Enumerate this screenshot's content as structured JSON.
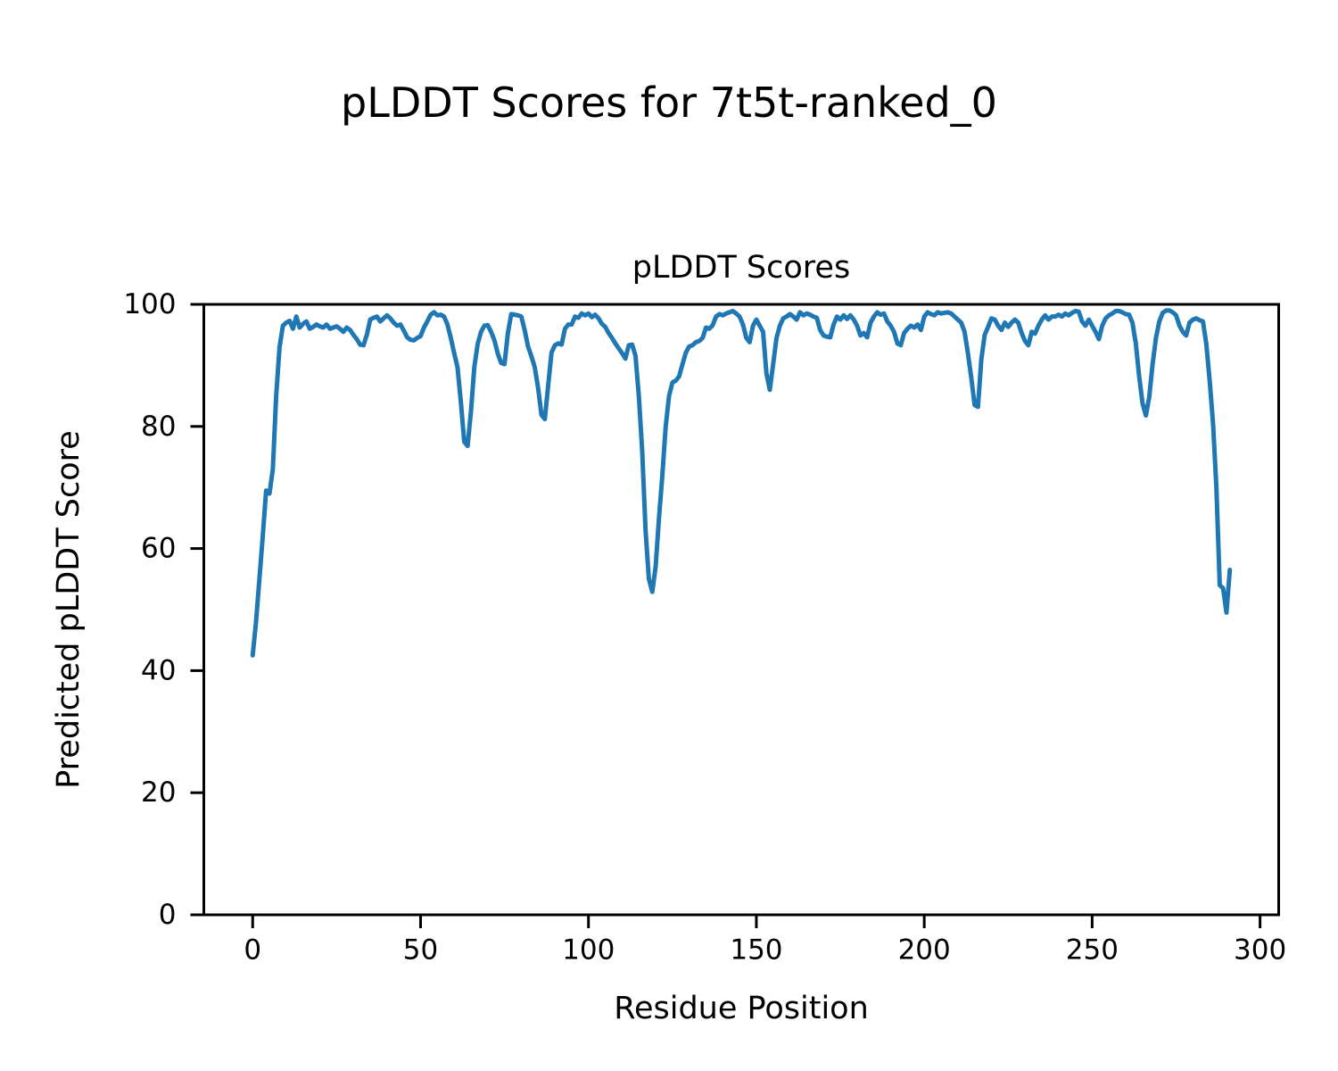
{
  "chart_data": {
    "type": "line",
    "suptitle": "pLDDT Scores for 7t5t-ranked_0",
    "title": "pLDDT Scores",
    "xlabel": "Residue Position",
    "ylabel": "Predicted pLDDT Score",
    "xlim": [
      -14.55,
      305.55
    ],
    "ylim": [
      0,
      100
    ],
    "xticks": [
      0,
      50,
      100,
      150,
      200,
      250,
      300
    ],
    "yticks": [
      0,
      20,
      40,
      60,
      80,
      100
    ],
    "grid": false,
    "legend_position": "none",
    "line_color": "#1f77b4",
    "x_start": 0,
    "x_step": 1,
    "series": [
      {
        "name": "pLDDT",
        "values": [
          42.5,
          48,
          55,
          62,
          69.5,
          69,
          73,
          85,
          93,
          96.5,
          97,
          97.3,
          96,
          98,
          96.2,
          96.8,
          97.2,
          96,
          96.3,
          96.7,
          96.4,
          96.2,
          96.7,
          96,
          96.2,
          96.4,
          96,
          95.5,
          96.2,
          95.8,
          95,
          94.3,
          93.4,
          93.3,
          95,
          97.5,
          97.8,
          98,
          97.2,
          97.7,
          98.2,
          97.7,
          97,
          96.5,
          96.7,
          95.7,
          94.6,
          94.2,
          94.1,
          94.5,
          94.8,
          96.2,
          97.2,
          98.3,
          98.7,
          98.2,
          98.3,
          98,
          96.7,
          94.5,
          92,
          89.7,
          84,
          77.5,
          76.8,
          82.4,
          89.7,
          93.5,
          95.5,
          96.5,
          96.6,
          95.5,
          94.1,
          91.9,
          90.4,
          90.2,
          95.3,
          98.4,
          98.3,
          98.2,
          98,
          95.8,
          93.1,
          91.5,
          89.7,
          86.3,
          81.9,
          81.2,
          86.7,
          92.1,
          93.3,
          93.6,
          93.4,
          96,
          96.7,
          96.7,
          98,
          97.8,
          98.5,
          98.2,
          98.5,
          97.9,
          98.3,
          97.7,
          96.8,
          96.3,
          95.3,
          94.5,
          93.6,
          92.8,
          92,
          91.1,
          93.3,
          93.4,
          91.6,
          85,
          76,
          63,
          55,
          52.9,
          57,
          65,
          72,
          80,
          85,
          87.2,
          87.5,
          88.2,
          90.2,
          92.1,
          93.1,
          93.3,
          93.8,
          94,
          94.5,
          96.2,
          96,
          96.6,
          98,
          98.4,
          98.2,
          98.5,
          98.7,
          98.9,
          98.5,
          98,
          96.7,
          94.5,
          93.8,
          96.5,
          97.5,
          96.5,
          95.5,
          88.7,
          86,
          90.2,
          94.5,
          96.5,
          97.7,
          98,
          98.4,
          98,
          97.5,
          98.7,
          98.2,
          98.5,
          98.3,
          98,
          97.8,
          95.8,
          94.9,
          94.7,
          94.6,
          96.7,
          98,
          97.5,
          98.2,
          97.6,
          98.2,
          97.5,
          96.5,
          94.9,
          95.3,
          94.6,
          97,
          98,
          98.7,
          98.3,
          98.5,
          97.2,
          96.5,
          95.5,
          93.6,
          93.3,
          95.3,
          96,
          96.5,
          96.2,
          96.7,
          95.8,
          98,
          98.7,
          98.4,
          98.2,
          98.7,
          98.5,
          98.6,
          98.7,
          98.5,
          98,
          97.5,
          97,
          95.5,
          92,
          88,
          83.5,
          83.2,
          91,
          95,
          96.3,
          97.7,
          97.5,
          96.5,
          95.8,
          97,
          96.3,
          97,
          97.5,
          97,
          95.3,
          94,
          93.3,
          95.5,
          95.2,
          96.5,
          97.5,
          98.2,
          97.5,
          98,
          98,
          98.3,
          98,
          98.5,
          98.2,
          98.6,
          98.9,
          98.8,
          97.2,
          96.5,
          97.5,
          96.5,
          95.5,
          94.3,
          96.5,
          97.7,
          98.2,
          98.5,
          98.9,
          98.9,
          98.7,
          98.4,
          98.3,
          97,
          93.6,
          88.2,
          83.8,
          81.8,
          84.8,
          90.2,
          94.5,
          97.2,
          98.6,
          99,
          99,
          98.7,
          98.2,
          96.5,
          95.5,
          94.9,
          97,
          97.5,
          97.7,
          97.4,
          97.2,
          93.5,
          87.5,
          80.5,
          70,
          54,
          53.5,
          49.5,
          56.5
        ]
      }
    ]
  }
}
